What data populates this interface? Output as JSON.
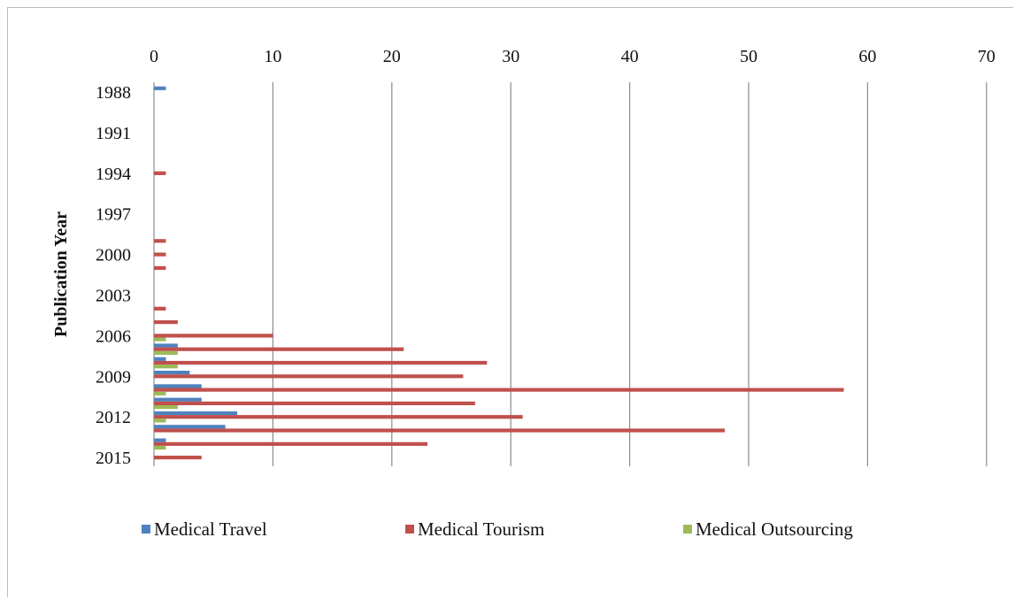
{
  "chart_data": {
    "type": "bar",
    "orientation": "horizontal",
    "title": "",
    "xlabel": "",
    "ylabel": "Publication Year",
    "xlim": [
      0,
      70
    ],
    "x_ticks": [
      0,
      10,
      20,
      30,
      40,
      50,
      60,
      70
    ],
    "x_axis_position": "top",
    "grid": "vertical",
    "legend_position": "bottom",
    "categories": [
      "1988",
      "1989",
      "1990",
      "1991",
      "1992",
      "1993",
      "1994",
      "1995",
      "1996",
      "1997",
      "1998",
      "1999",
      "2000",
      "2001",
      "2002",
      "2003",
      "2004",
      "2005",
      "2006",
      "2007",
      "2008",
      "2009",
      "2010",
      "2011",
      "2012",
      "2013",
      "2014",
      "2015"
    ],
    "category_labels": [
      "1988",
      "1991",
      "1994",
      "1997",
      "2000",
      "2003",
      "2006",
      "2009",
      "2012",
      "2015"
    ],
    "series": [
      {
        "name": "Medical Travel",
        "color": "#4f81bd",
        "values": [
          1,
          0,
          0,
          0,
          0,
          0,
          0,
          0,
          0,
          0,
          0,
          0,
          0,
          0,
          0,
          0,
          0,
          0,
          0,
          2,
          1,
          3,
          4,
          4,
          7,
          6,
          1,
          0
        ]
      },
      {
        "name": "Medical Tourism",
        "color": "#c0504d",
        "values": [
          0,
          0,
          0,
          0,
          0,
          0,
          1,
          0,
          0,
          0,
          0,
          1,
          1,
          1,
          0,
          0,
          1,
          2,
          10,
          21,
          28,
          26,
          58,
          27,
          31,
          48,
          23,
          4
        ]
      },
      {
        "name": "Medical Outsourcing",
        "color": "#9bbb59",
        "values": [
          0,
          0,
          0,
          0,
          0,
          0,
          0,
          0,
          0,
          0,
          0,
          0,
          0,
          0,
          0,
          0,
          0,
          0,
          1,
          2,
          2,
          0,
          1,
          2,
          1,
          0,
          1,
          0
        ]
      }
    ]
  }
}
